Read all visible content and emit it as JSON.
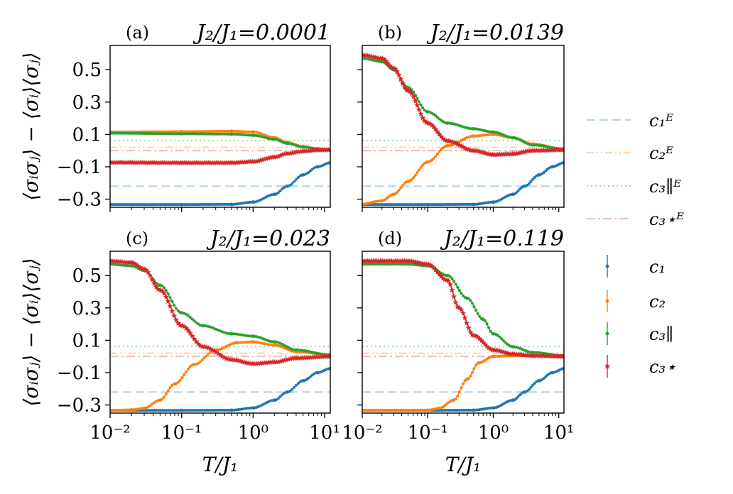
{
  "chart_data": {
    "type": "line",
    "layout": "2x2 panels with shared legend",
    "x_axis": {
      "label": "T/J₁",
      "scale": "log",
      "range": [
        0.01,
        12
      ],
      "ticks": [
        0.01,
        0.1,
        1,
        10
      ],
      "tick_labels": [
        "10⁻²",
        "10⁻¹",
        "10⁰",
        "10¹"
      ]
    },
    "y_axis": {
      "label": "⟨σᵢσⱼ⟩ − ⟨σᵢ⟩⟨σⱼ⟩",
      "range": [
        -0.35,
        0.65
      ],
      "ticks": [
        0.5,
        0.3,
        0.1,
        -0.1,
        -0.3
      ],
      "tick_labels": [
        "0.5",
        "0.3",
        "0.1",
        "−0.1",
        "−0.3"
      ]
    },
    "legend": {
      "placement": "right",
      "entries": [
        {
          "key": "c1E",
          "label": "c₁ᴱ",
          "style": "dashed",
          "color": "#1f77b4",
          "alpha": 0.3
        },
        {
          "key": "c2E",
          "label": "c₂ᴱ",
          "style": "dashdotdot",
          "color": "#ff7f0e",
          "alpha": 0.3
        },
        {
          "key": "c3parE",
          "label": "c₃∥ᴱ",
          "style": "dotted",
          "color": "#2ca02c",
          "alpha": 0.4
        },
        {
          "key": "c3starE",
          "label": "c₃⋆ᴱ",
          "style": "dashdot",
          "color": "#d62728",
          "alpha": 0.3
        },
        {
          "key": "c1",
          "label": "c₁",
          "style": "errorbar",
          "color": "#1f77b4",
          "alpha": 1
        },
        {
          "key": "c2",
          "label": "c₂",
          "style": "errorbar",
          "color": "#ff7f0e",
          "alpha": 1
        },
        {
          "key": "c3par",
          "label": "c₃∥",
          "style": "errorbar",
          "color": "#2ca02c",
          "alpha": 1
        },
        {
          "key": "c3star",
          "label": "c₃⋆",
          "style": "errorbar",
          "color": "#d62728",
          "alpha": 1
        }
      ]
    },
    "panels": [
      {
        "label": "(a)",
        "ratio_text": "J₂/J₁=0.0001",
        "reference_values": {
          "c1E": -0.22,
          "c2E": 0.02,
          "c3parE": 0.062,
          "c3starE": 0.0
        },
        "series": [
          {
            "key": "c1",
            "T": [
              0.01,
              0.1,
              0.5,
              1.0,
              2.0,
              3.0,
              5.0,
              8.0,
              12.0
            ],
            "values": [
              -0.333,
              -0.333,
              -0.332,
              -0.318,
              -0.27,
              -0.22,
              -0.15,
              -0.1,
              -0.075
            ]
          },
          {
            "key": "c2",
            "T": [
              0.01,
              0.1,
              0.5,
              1.0,
              2.0,
              3.0,
              5.0,
              8.0,
              12.0
            ],
            "values": [
              0.115,
              0.117,
              0.12,
              0.115,
              0.08,
              0.05,
              0.025,
              0.012,
              0.008
            ]
          },
          {
            "key": "c3par",
            "T": [
              0.01,
              0.1,
              0.5,
              1.0,
              2.0,
              3.0,
              5.0,
              8.0,
              12.0
            ],
            "values": [
              0.108,
              0.104,
              0.102,
              0.095,
              0.07,
              0.045,
              0.022,
              0.01,
              0.006
            ]
          },
          {
            "key": "c3star",
            "T": [
              0.01,
              0.1,
              0.5,
              1.0,
              2.0,
              3.0,
              5.0,
              8.0,
              12.0
            ],
            "values": [
              -0.073,
              -0.075,
              -0.075,
              -0.068,
              -0.04,
              -0.018,
              -0.004,
              0.003,
              0.004
            ]
          }
        ]
      },
      {
        "label": "(b)",
        "ratio_text": "J₂/J₁=0.0139",
        "reference_values": {
          "c1E": -0.22,
          "c2E": 0.02,
          "c3parE": 0.062,
          "c3starE": 0.0
        },
        "series": [
          {
            "key": "c1",
            "T": [
              0.01,
              0.1,
              0.5,
              1.0,
              2.0,
              3.0,
              5.0,
              8.0,
              12.0
            ],
            "values": [
              -0.333,
              -0.333,
              -0.332,
              -0.318,
              -0.27,
              -0.22,
              -0.15,
              -0.1,
              -0.075
            ]
          },
          {
            "key": "c2",
            "T": [
              0.01,
              0.02,
              0.03,
              0.05,
              0.1,
              0.2,
              0.5,
              1.0,
              2.0,
              4.0,
              12.0
            ],
            "values": [
              -0.33,
              -0.31,
              -0.27,
              -0.19,
              -0.07,
              0.03,
              0.09,
              0.1,
              0.08,
              0.04,
              0.01
            ]
          },
          {
            "key": "c3par",
            "T": [
              0.01,
              0.02,
              0.03,
              0.05,
              0.1,
              0.2,
              0.5,
              1.0,
              2.0,
              4.0,
              12.0
            ],
            "values": [
              0.57,
              0.55,
              0.5,
              0.39,
              0.24,
              0.17,
              0.135,
              0.115,
              0.08,
              0.035,
              0.01
            ]
          },
          {
            "key": "c3star",
            "T": [
              0.01,
              0.02,
              0.03,
              0.05,
              0.1,
              0.2,
              0.5,
              1.0,
              2.0,
              4.0,
              12.0
            ],
            "values": [
              0.59,
              0.57,
              0.51,
              0.37,
              0.17,
              0.06,
              0.0,
              -0.025,
              -0.02,
              0.0,
              0.005
            ]
          }
        ]
      },
      {
        "label": "(c)",
        "ratio_text": "J₂/J₁=0.023",
        "reference_values": {
          "c1E": -0.22,
          "c2E": 0.02,
          "c3parE": 0.062,
          "c3starE": 0.0
        },
        "series": [
          {
            "key": "c1",
            "T": [
              0.01,
              0.1,
              0.5,
              1.0,
              2.0,
              3.0,
              5.0,
              8.0,
              12.0
            ],
            "values": [
              -0.333,
              -0.333,
              -0.332,
              -0.318,
              -0.27,
              -0.22,
              -0.15,
              -0.1,
              -0.075
            ]
          },
          {
            "key": "c2",
            "T": [
              0.01,
              0.02,
              0.03,
              0.05,
              0.08,
              0.15,
              0.3,
              0.6,
              1.0,
              2.0,
              4.0,
              12.0
            ],
            "values": [
              -0.333,
              -0.33,
              -0.32,
              -0.27,
              -0.17,
              -0.05,
              0.04,
              0.085,
              0.09,
              0.07,
              0.03,
              0.01
            ]
          },
          {
            "key": "c3par",
            "T": [
              0.01,
              0.02,
              0.03,
              0.05,
              0.1,
              0.2,
              0.5,
              1.0,
              2.0,
              4.0,
              12.0
            ],
            "values": [
              0.57,
              0.56,
              0.53,
              0.44,
              0.27,
              0.19,
              0.14,
              0.125,
              0.09,
              0.04,
              0.01
            ]
          },
          {
            "key": "c3star",
            "T": [
              0.01,
              0.02,
              0.03,
              0.05,
              0.1,
              0.2,
              0.5,
              1.0,
              2.0,
              4.0,
              12.0
            ],
            "values": [
              0.59,
              0.58,
              0.54,
              0.41,
              0.19,
              0.06,
              -0.02,
              -0.045,
              -0.035,
              -0.01,
              0.0
            ]
          }
        ]
      },
      {
        "label": "(d)",
        "ratio_text": "J₂/J₁=0.119",
        "reference_values": {
          "c1E": -0.22,
          "c2E": 0.02,
          "c3parE": 0.062,
          "c3starE": 0.0
        },
        "series": [
          {
            "key": "c1",
            "T": [
              0.01,
              0.1,
              0.5,
              1.0,
              2.0,
              3.0,
              5.0,
              8.0,
              12.0
            ],
            "values": [
              -0.333,
              -0.333,
              -0.332,
              -0.318,
              -0.27,
              -0.22,
              -0.15,
              -0.1,
              -0.075
            ]
          },
          {
            "key": "c2",
            "T": [
              0.01,
              0.1,
              0.15,
              0.25,
              0.4,
              0.6,
              1.0,
              2.0,
              12.0
            ],
            "values": [
              -0.333,
              -0.332,
              -0.32,
              -0.27,
              -0.14,
              -0.04,
              0.0,
              0.005,
              0.005
            ]
          },
          {
            "key": "c3par",
            "T": [
              0.01,
              0.05,
              0.1,
              0.2,
              0.4,
              0.7,
              1.0,
              2.0,
              4.0,
              12.0
            ],
            "values": [
              0.57,
              0.57,
              0.56,
              0.5,
              0.36,
              0.23,
              0.14,
              0.06,
              0.025,
              0.005
            ]
          },
          {
            "key": "c3star",
            "T": [
              0.01,
              0.05,
              0.1,
              0.2,
              0.3,
              0.5,
              1.0,
              2.0,
              4.0,
              12.0
            ],
            "values": [
              0.59,
              0.59,
              0.57,
              0.47,
              0.3,
              0.13,
              0.04,
              0.015,
              0.005,
              0.0
            ]
          }
        ]
      }
    ]
  }
}
